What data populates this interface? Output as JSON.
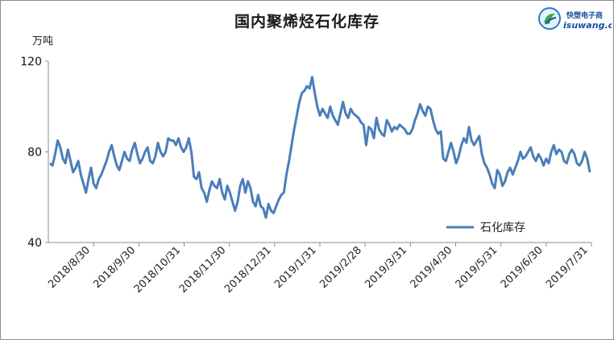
{
  "chart_data": {
    "type": "line",
    "title": "国内聚烯烃石化库存",
    "unit_label": "万吨",
    "ylim": [
      40,
      120
    ],
    "yticks": [
      "40",
      "80",
      "120"
    ],
    "xticks": [
      "2018/8/30",
      "2018/9/30",
      "2018/10/31",
      "2018/11/30",
      "2018/12/31",
      "2019/1/31",
      "2019/2/28",
      "2019/3/31",
      "2019/4/30",
      "2019/5/31",
      "2019/6/30",
      "2019/7/31"
    ],
    "legend_position": "lower-right",
    "grid": false,
    "series": [
      {
        "name": "石化库存",
        "color": "#4a7ebb",
        "values": [
          75,
          74,
          79,
          85,
          82,
          77,
          75,
          81,
          76,
          71,
          73,
          76,
          70,
          66,
          62,
          68,
          73,
          66,
          64,
          68,
          70,
          73,
          76,
          80,
          83,
          78,
          74,
          72,
          76,
          80,
          77,
          76,
          81,
          84,
          79,
          75,
          77,
          80,
          82,
          76,
          75,
          78,
          84,
          80,
          78,
          80,
          86,
          85,
          85,
          83,
          86,
          82,
          80,
          82,
          86,
          80,
          69,
          68,
          71,
          64,
          62,
          58,
          63,
          67,
          65,
          64,
          68,
          62,
          59,
          65,
          62,
          58,
          54,
          58,
          65,
          68,
          62,
          67,
          64,
          58,
          56,
          61,
          56,
          55,
          51,
          57,
          54,
          53,
          56,
          59,
          61,
          62,
          70,
          76,
          83,
          90,
          96,
          102,
          106,
          107,
          109,
          108,
          113,
          106,
          100,
          96,
          99,
          97,
          95,
          100,
          96,
          94,
          92,
          97,
          102,
          97,
          95,
          99,
          97,
          96,
          95,
          93,
          92,
          83,
          91,
          90,
          86,
          95,
          90,
          88,
          87,
          94,
          92,
          89,
          91,
          90,
          92,
          91,
          90,
          88,
          88,
          90,
          94,
          97,
          101,
          98,
          96,
          100,
          99,
          94,
          90,
          88,
          89,
          77,
          76,
          80,
          84,
          80,
          75,
          78,
          83,
          86,
          84,
          91,
          85,
          83,
          85,
          87,
          79,
          75,
          73,
          70,
          66,
          64,
          72,
          70,
          65,
          67,
          71,
          73,
          70,
          73,
          76,
          80,
          77,
          78,
          80,
          82,
          78,
          76,
          79,
          77,
          74,
          77,
          75,
          80,
          83,
          79,
          81,
          80,
          76,
          75,
          79,
          81,
          79,
          75,
          74,
          76,
          80,
          77,
          71
        ]
      }
    ]
  }
}
